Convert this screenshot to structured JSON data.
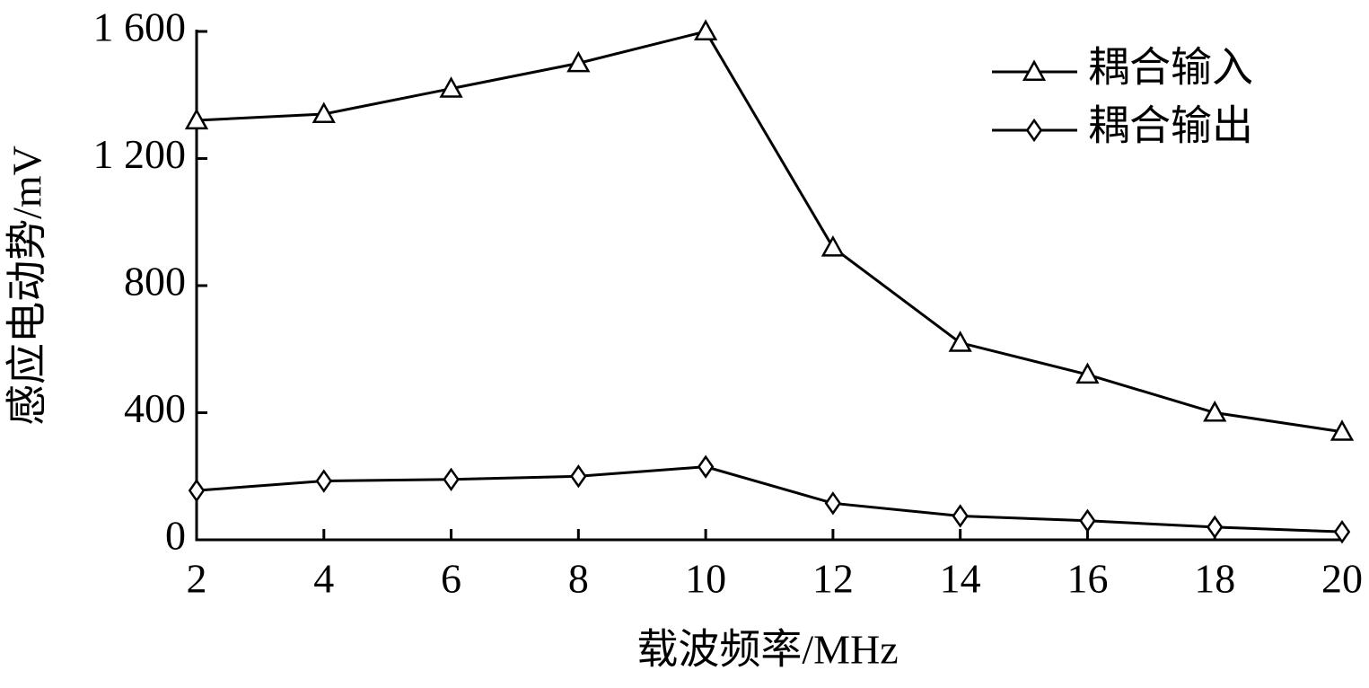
{
  "chart_data": {
    "type": "line",
    "x_label": "载波频率/MHz",
    "y_label": "感应电动势/mV",
    "x": [
      2,
      4,
      6,
      8,
      10,
      12,
      14,
      16,
      18,
      20
    ],
    "series": [
      {
        "name": "耦合输入",
        "marker": "triangle",
        "color": "#000000",
        "values": [
          1320,
          1340,
          1420,
          1500,
          1600,
          920,
          620,
          520,
          400,
          340
        ]
      },
      {
        "name": "耦合输出",
        "marker": "diamond",
        "color": "#000000",
        "values": [
          155,
          185,
          190,
          200,
          230,
          115,
          75,
          60,
          40,
          25
        ]
      }
    ],
    "xlim": [
      2,
      20
    ],
    "xticks": [
      2,
      4,
      6,
      8,
      10,
      12,
      14,
      16,
      18,
      20
    ],
    "ylim": [
      0,
      1600
    ],
    "yticks": [
      0,
      400,
      800,
      {
        "value": 1200,
        "label": "1 200"
      },
      {
        "value": 1600,
        "label": "1 600"
      }
    ],
    "legend": "top-right",
    "grid": false
  }
}
